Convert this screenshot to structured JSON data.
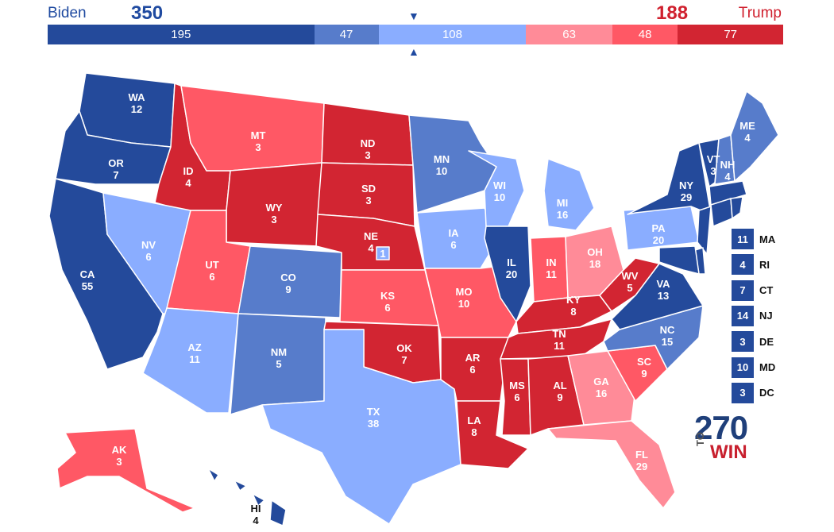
{
  "header": {
    "left_name": "Biden",
    "left_total": "350",
    "right_name": "Trump",
    "right_total": "188",
    "arrow_top": "▼",
    "arrow_bottom": "▲"
  },
  "colors": {
    "safe_d": "#244a9b",
    "likely_d": "#577ccb",
    "lean_d": "#8aadff",
    "lean_r": "#ff8b98",
    "likely_r": "#ff5865",
    "safe_r": "#d22532"
  },
  "bar": [
    {
      "label": "195",
      "value": 195,
      "rating": "safe_d"
    },
    {
      "label": "47",
      "value": 47,
      "rating": "likely_d"
    },
    {
      "label": "108",
      "value": 108,
      "rating": "lean_d"
    },
    {
      "label": "63",
      "value": 63,
      "rating": "lean_r"
    },
    {
      "label": "48",
      "value": 48,
      "rating": "likely_r"
    },
    {
      "label": "77",
      "value": 77,
      "rating": "safe_r"
    }
  ],
  "states": [
    {
      "abbr": "WA",
      "ev": "12",
      "rating": "safe_d"
    },
    {
      "abbr": "OR",
      "ev": "7",
      "rating": "safe_d"
    },
    {
      "abbr": "CA",
      "ev": "55",
      "rating": "safe_d"
    },
    {
      "abbr": "ID",
      "ev": "4",
      "rating": "safe_r"
    },
    {
      "abbr": "NV",
      "ev": "6",
      "rating": "lean_d"
    },
    {
      "abbr": "MT",
      "ev": "3",
      "rating": "likely_r"
    },
    {
      "abbr": "WY",
      "ev": "3",
      "rating": "safe_r"
    },
    {
      "abbr": "UT",
      "ev": "6",
      "rating": "likely_r"
    },
    {
      "abbr": "AZ",
      "ev": "11",
      "rating": "lean_d"
    },
    {
      "abbr": "CO",
      "ev": "9",
      "rating": "likely_d"
    },
    {
      "abbr": "NM",
      "ev": "5",
      "rating": "likely_d"
    },
    {
      "abbr": "ND",
      "ev": "3",
      "rating": "safe_r"
    },
    {
      "abbr": "SD",
      "ev": "3",
      "rating": "safe_r"
    },
    {
      "abbr": "NE",
      "ev": "4",
      "rating": "safe_r"
    },
    {
      "abbr": "KS",
      "ev": "6",
      "rating": "likely_r"
    },
    {
      "abbr": "OK",
      "ev": "7",
      "rating": "safe_r"
    },
    {
      "abbr": "TX",
      "ev": "38",
      "rating": "lean_d"
    },
    {
      "abbr": "MN",
      "ev": "10",
      "rating": "likely_d"
    },
    {
      "abbr": "IA",
      "ev": "6",
      "rating": "lean_d"
    },
    {
      "abbr": "MO",
      "ev": "10",
      "rating": "likely_r"
    },
    {
      "abbr": "AR",
      "ev": "6",
      "rating": "safe_r"
    },
    {
      "abbr": "LA",
      "ev": "8",
      "rating": "safe_r"
    },
    {
      "abbr": "WI",
      "ev": "10",
      "rating": "lean_d"
    },
    {
      "abbr": "IL",
      "ev": "20",
      "rating": "safe_d"
    },
    {
      "abbr": "MI",
      "ev": "16",
      "rating": "lean_d"
    },
    {
      "abbr": "IN",
      "ev": "11",
      "rating": "likely_r"
    },
    {
      "abbr": "OH",
      "ev": "18",
      "rating": "lean_r"
    },
    {
      "abbr": "KY",
      "ev": "8",
      "rating": "safe_r"
    },
    {
      "abbr": "TN",
      "ev": "11",
      "rating": "safe_r"
    },
    {
      "abbr": "MS",
      "ev": "6",
      "rating": "safe_r"
    },
    {
      "abbr": "AL",
      "ev": "9",
      "rating": "safe_r"
    },
    {
      "abbr": "GA",
      "ev": "16",
      "rating": "lean_r"
    },
    {
      "abbr": "FL",
      "ev": "29",
      "rating": "lean_r"
    },
    {
      "abbr": "SC",
      "ev": "9",
      "rating": "likely_r"
    },
    {
      "abbr": "NC",
      "ev": "15",
      "rating": "likely_d"
    },
    {
      "abbr": "VA",
      "ev": "13",
      "rating": "safe_d"
    },
    {
      "abbr": "WV",
      "ev": "5",
      "rating": "safe_r"
    },
    {
      "abbr": "PA",
      "ev": "20",
      "rating": "lean_d"
    },
    {
      "abbr": "NY",
      "ev": "29",
      "rating": "safe_d"
    },
    {
      "abbr": "VT",
      "ev": "3",
      "rating": "safe_d"
    },
    {
      "abbr": "NH",
      "ev": "4",
      "rating": "likely_d"
    },
    {
      "abbr": "ME",
      "ev": "4",
      "rating": "likely_d"
    },
    {
      "abbr": "AK",
      "ev": "3",
      "rating": "likely_r"
    },
    {
      "abbr": "HI",
      "ev": "4",
      "rating": "safe_d"
    },
    {
      "abbr": "NE-2",
      "ev": "1",
      "rating": "lean_d"
    }
  ],
  "small_states": [
    {
      "abbr": "MA",
      "ev": "11",
      "rating": "safe_d"
    },
    {
      "abbr": "RI",
      "ev": "4",
      "rating": "safe_d"
    },
    {
      "abbr": "CT",
      "ev": "7",
      "rating": "safe_d"
    },
    {
      "abbr": "NJ",
      "ev": "14",
      "rating": "safe_d"
    },
    {
      "abbr": "DE",
      "ev": "3",
      "rating": "safe_d"
    },
    {
      "abbr": "MD",
      "ev": "10",
      "rating": "safe_d"
    },
    {
      "abbr": "DC",
      "ev": "3",
      "rating": "safe_d"
    }
  ],
  "logo": {
    "number": "270",
    "to": "TO",
    "win": "WIN"
  }
}
